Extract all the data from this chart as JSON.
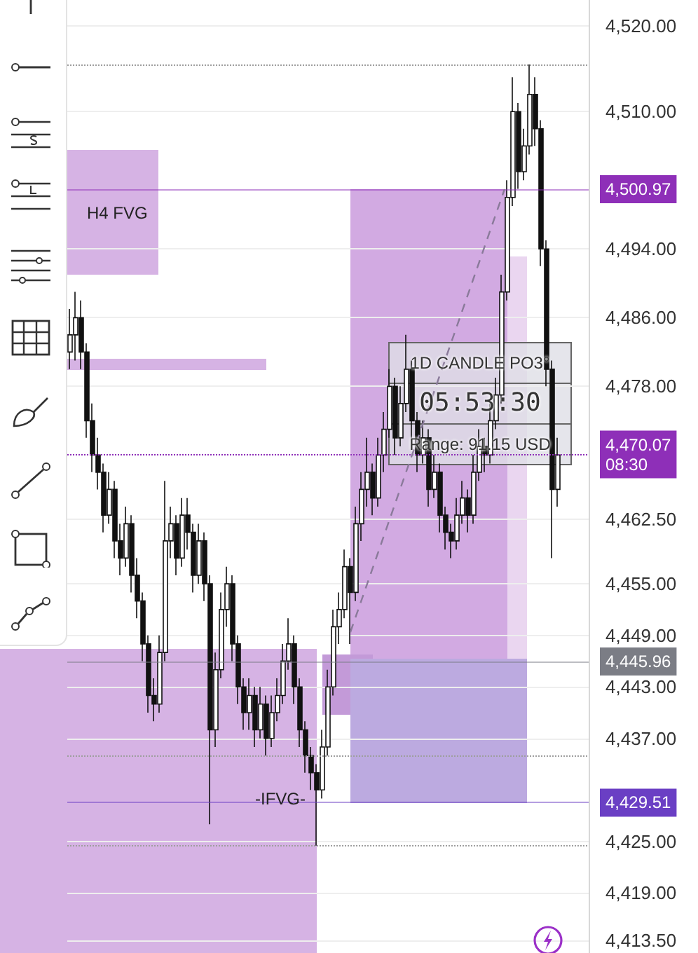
{
  "chart_data": {
    "type": "candlestick",
    "categories": [
      null,
      null,
      null,
      null,
      null,
      null,
      null,
      null,
      null,
      null,
      null,
      null,
      null,
      null,
      null,
      null,
      null,
      null,
      null,
      null,
      null,
      null,
      null,
      null,
      null,
      null,
      null,
      null,
      null,
      null,
      null,
      null,
      null,
      null,
      null,
      null,
      null,
      null,
      null,
      null,
      null,
      null,
      null,
      null,
      null,
      null,
      null,
      null,
      null,
      null,
      null,
      null,
      null,
      null,
      null,
      null,
      null,
      null,
      null,
      null,
      null,
      null,
      null,
      null,
      null,
      null,
      null,
      null,
      null,
      null,
      null,
      null,
      null,
      null,
      null,
      null,
      null,
      null,
      null,
      null,
      null,
      null,
      null,
      null,
      null,
      null,
      null,
      null
    ],
    "color": "#111111",
    "ohlc": [
      [
        4482,
        4487,
        4480,
        4484
      ],
      [
        4484,
        4489,
        4481,
        4486
      ],
      [
        4486,
        4488,
        4480,
        4482
      ],
      [
        4482,
        4483,
        4472,
        4474
      ],
      [
        4474,
        4476,
        4468,
        4470
      ],
      [
        4470,
        4472,
        4466,
        4468
      ],
      [
        4468,
        4469,
        4461,
        4463
      ],
      [
        4463,
        4468,
        4462,
        4466
      ],
      [
        4466,
        4467,
        4458,
        4460
      ],
      [
        4460,
        4462,
        4456,
        4458
      ],
      [
        4458,
        4464,
        4457,
        4462
      ],
      [
        4462,
        4463,
        4454,
        4456
      ],
      [
        4456,
        4458,
        4451,
        4453
      ],
      [
        4453,
        4454,
        4446,
        4448
      ],
      [
        4448,
        4449,
        4440,
        4442
      ],
      [
        4442,
        4444,
        4439,
        4441
      ],
      [
        4441,
        4449,
        4440,
        4447
      ],
      [
        4447,
        4467,
        4446,
        4460
      ],
      [
        4460,
        4464,
        4458,
        4462
      ],
      [
        4462,
        4463,
        4456,
        4458
      ],
      [
        4458,
        4465,
        4457,
        4463
      ],
      [
        4463,
        4465,
        4459,
        4461
      ],
      [
        4461,
        4462,
        4454,
        4456
      ],
      [
        4456,
        4462,
        4455,
        4460
      ],
      [
        4460,
        4461,
        4453,
        4455
      ],
      [
        4455,
        4456,
        4427,
        4438
      ],
      [
        4438,
        4447,
        4436,
        4445
      ],
      [
        4445,
        4454,
        4444,
        4452
      ],
      [
        4452,
        4457,
        4450,
        4455
      ],
      [
        4455,
        4456,
        4446,
        4448
      ],
      [
        4448,
        4449,
        4441,
        4443
      ],
      [
        4443,
        4444,
        4438,
        4440
      ],
      [
        4440,
        4444,
        4438,
        4442
      ],
      [
        4442,
        4443,
        4436,
        4438
      ],
      [
        4438,
        4443,
        4437,
        4441
      ],
      [
        4441,
        4442,
        4435,
        4437
      ],
      [
        4437,
        4442,
        4436,
        4440
      ],
      [
        4440,
        4444,
        4439,
        4442
      ],
      [
        4442,
        4448,
        4441,
        4446
      ],
      [
        4446,
        4451,
        4445,
        4448
      ],
      [
        4448,
        4449,
        4441,
        4443
      ],
      [
        4443,
        4444,
        4436,
        4438
      ],
      [
        4438,
        4439,
        4433,
        4435
      ],
      [
        4435,
        4436,
        4431,
        4433
      ],
      [
        4433,
        4434,
        4424.5,
        4431
      ],
      [
        4431,
        4438,
        4430,
        4436
      ],
      [
        4436,
        4445,
        4435,
        4443
      ],
      [
        4443,
        4452,
        4442,
        4450
      ],
      [
        4450,
        4454,
        4448,
        4452
      ],
      [
        4452,
        4459,
        4451,
        4457
      ],
      [
        4457,
        4458,
        4448,
        4454
      ],
      [
        4454,
        4464,
        4453,
        4462
      ],
      [
        4462,
        4468,
        4460,
        4466
      ],
      [
        4466,
        4472,
        4464,
        4468
      ],
      [
        4468,
        4469,
        4463,
        4465
      ],
      [
        4465,
        4472,
        4464,
        4470
      ],
      [
        4470,
        4475,
        4468,
        4473
      ],
      [
        4473,
        4480,
        4472,
        4478
      ],
      [
        4478,
        4479,
        4470,
        4472
      ],
      [
        4472,
        4478,
        4471,
        4476
      ],
      [
        4476,
        4484,
        4475,
        4480
      ],
      [
        4480,
        4481,
        4472,
        4474
      ],
      [
        4474,
        4475,
        4468,
        4470
      ],
      [
        4470,
        4474,
        4469,
        4472
      ],
      [
        4472,
        4473,
        4464,
        4466
      ],
      [
        4466,
        4470,
        4465,
        4468
      ],
      [
        4468,
        4469,
        4461,
        4463
      ],
      [
        4463,
        4464,
        4459,
        4461
      ],
      [
        4461,
        4462,
        4458,
        4460
      ],
      [
        4460,
        4465,
        4459,
        4463
      ],
      [
        4463,
        4467,
        4462,
        4465
      ],
      [
        4465,
        4466,
        4461,
        4463
      ],
      [
        4463,
        4470,
        4462,
        4468
      ],
      [
        4468,
        4473,
        4467,
        4471
      ],
      [
        4471,
        4472,
        4468,
        4470
      ],
      [
        4470,
        4476,
        4469,
        4474
      ],
      [
        4474,
        4479,
        4473,
        4477
      ],
      [
        4477,
        4491,
        4476,
        4489
      ],
      [
        4489,
        4502,
        4488,
        4500
      ],
      [
        4500,
        4514,
        4499,
        4510
      ],
      [
        4510,
        4511,
        4501,
        4503
      ],
      [
        4503,
        4508,
        4502,
        4506
      ],
      [
        4506,
        4515.5,
        4505,
        4512
      ],
      [
        4512,
        4514,
        4506,
        4508
      ],
      [
        4508,
        4509,
        4492,
        4494
      ],
      [
        4494,
        4495,
        4478,
        4480
      ],
      [
        4480,
        4481,
        4458,
        4466
      ],
      [
        4466,
        4472,
        4464,
        4470
      ]
    ],
    "ylim": [
      4412,
      4523
    ],
    "yticks": [
      {
        "value": 4520,
        "label": "4,520.00"
      },
      {
        "value": 4510,
        "label": "4,510.00"
      },
      {
        "value": 4494,
        "label": "4,494.00"
      },
      {
        "value": 4486,
        "label": "4,486.00"
      },
      {
        "value": 4478,
        "label": "4,478.00"
      },
      {
        "value": 4462.5,
        "label": "4,462.50"
      },
      {
        "value": 4455,
        "label": "4,455.00"
      },
      {
        "value": 4449,
        "label": "4,449.00"
      },
      {
        "value": 4443,
        "label": "4,443.00"
      },
      {
        "value": 4437,
        "label": "4,437.00"
      },
      {
        "value": 4425,
        "label": "4,425.00"
      },
      {
        "value": 4419,
        "label": "4,419.00"
      },
      {
        "value": 4413.5,
        "label": "4,413.50"
      }
    ],
    "ref_lines": [
      {
        "axis": "y",
        "value": 4500.97,
        "label": "4,500.97",
        "color": "#8e2fb8",
        "line_style": "solid"
      },
      {
        "axis": "y",
        "value": 4470.07,
        "label": "4,470.07\n08:30",
        "color": "#8e2fb8",
        "line_style": "dotted"
      },
      {
        "axis": "y",
        "value": 4445.96,
        "label": "4,445.96",
        "color": "#7b7d85",
        "line_style": "solid"
      },
      {
        "axis": "y",
        "value": 4429.51,
        "label": "4,429.51",
        "color": "#6a3fc4",
        "line_style": "solid"
      },
      {
        "axis": "y",
        "value": 4515.5,
        "color": "#9e9e9e",
        "line_style": "dotted"
      },
      {
        "axis": "y",
        "value": 4435,
        "color": "#9e9e9e",
        "line_style": "dotted"
      },
      {
        "axis": "y",
        "value": 4424.5,
        "color": "#9e9e9e",
        "line_style": "dotted"
      }
    ],
    "annotations": [
      "H4 FVG",
      "-IFVG-",
      "1D CANDLE PO3°",
      "05:53:30",
      "Range: 91.15 USD"
    ],
    "grid": "y",
    "tick_labels": "y"
  }
}
